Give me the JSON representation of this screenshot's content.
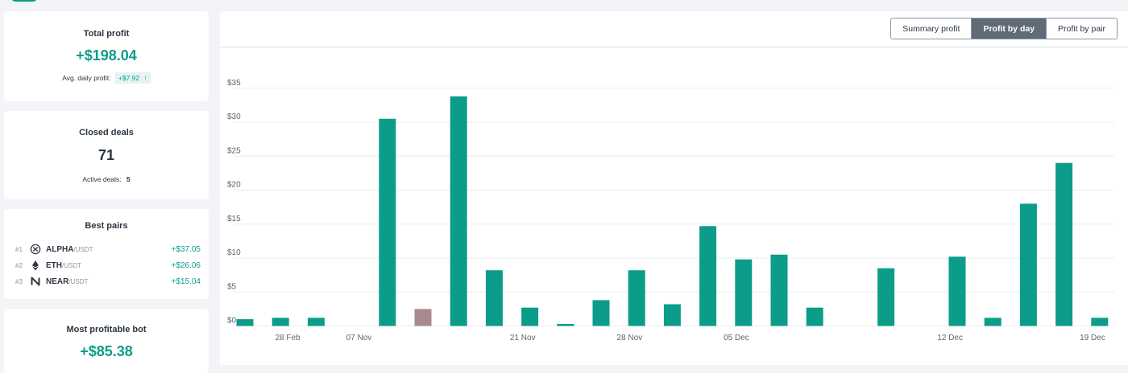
{
  "colors": {
    "accent": "#0c9c8a",
    "negative": "#a88a8e",
    "active_tab": "#5f6b77"
  },
  "total_profit": {
    "title": "Total profit",
    "value": "+$198.04",
    "avg_label": "Avg. daily profit:",
    "avg_value": "+$7.92",
    "trend_icon": "arrow-up-icon"
  },
  "closed_deals": {
    "title": "Closed deals",
    "value": "71",
    "active_label": "Active deals:",
    "active_value": "5"
  },
  "best_pairs": {
    "title": "Best pairs",
    "items": [
      {
        "rank": "#1",
        "icon": "alpha-coin-icon",
        "base": "ALPHA",
        "quote": "/USDT",
        "profit": "+$37.05"
      },
      {
        "rank": "#2",
        "icon": "eth-coin-icon",
        "base": "ETH",
        "quote": "/USDT",
        "profit": "+$26.06"
      },
      {
        "rank": "#3",
        "icon": "near-coin-icon",
        "base": "NEAR",
        "quote": "/USDT",
        "profit": "+$15.04"
      }
    ]
  },
  "most_profitable_bot": {
    "title": "Most profitable bot",
    "value": "+$85.38"
  },
  "tabs": [
    {
      "label": "Summary profit",
      "active": false
    },
    {
      "label": "Profit by day",
      "active": true
    },
    {
      "label": "Profit by pair",
      "active": false
    }
  ],
  "chart_data": {
    "type": "bar",
    "grid": true,
    "ylim": [
      0,
      35
    ],
    "yticks": [
      0,
      5,
      10,
      15,
      20,
      25,
      30,
      35
    ],
    "ytick_labels": [
      "$0",
      "$5",
      "$10",
      "$15",
      "$20",
      "$25",
      "$30",
      "$35"
    ],
    "xtick_labels": [
      "28 Feb",
      "07 Nov",
      "21 Nov",
      "28 Nov",
      "05 Dec",
      "12 Dec",
      "19 Dec"
    ],
    "xtick_slots": [
      1.2,
      3.2,
      7.8,
      10.8,
      13.8,
      19.8,
      23.8
    ],
    "bars": [
      {
        "slot": 0,
        "value": 1.0
      },
      {
        "slot": 1,
        "value": 1.2
      },
      {
        "slot": 2,
        "value": 1.2
      },
      {
        "slot": 4,
        "value": 30.5
      },
      {
        "slot": 5,
        "value": -2.5
      },
      {
        "slot": 6,
        "value": 33.8
      },
      {
        "slot": 7,
        "value": 8.2
      },
      {
        "slot": 8,
        "value": 2.7
      },
      {
        "slot": 9,
        "value": 0.3
      },
      {
        "slot": 10,
        "value": 3.8
      },
      {
        "slot": 11,
        "value": 8.2
      },
      {
        "slot": 12,
        "value": 3.2
      },
      {
        "slot": 13,
        "value": 14.7
      },
      {
        "slot": 14,
        "value": 9.8
      },
      {
        "slot": 15,
        "value": 10.5
      },
      {
        "slot": 16,
        "value": 2.7
      },
      {
        "slot": 18,
        "value": 8.5
      },
      {
        "slot": 20,
        "value": 10.2
      },
      {
        "slot": 21,
        "value": 1.2
      },
      {
        "slot": 22,
        "value": 18.0
      },
      {
        "slot": 23,
        "value": 24.0
      },
      {
        "slot": 24,
        "value": 1.2
      }
    ]
  }
}
